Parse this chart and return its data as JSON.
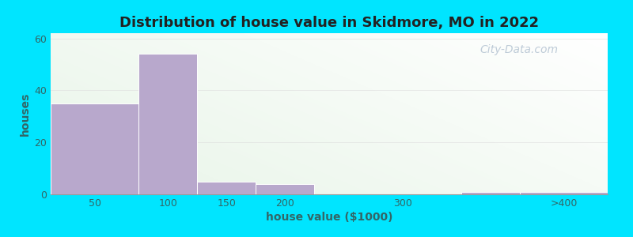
{
  "title": "Distribution of house value in Skidmore, MO in 2022",
  "xlabel": "house value ($1000)",
  "ylabel": "houses",
  "bar_color": "#b8a8cc",
  "bar_edgecolor": "#ffffff",
  "background_outer": "#00e5ff",
  "yticks": [
    0,
    20,
    40,
    60
  ],
  "ylim": [
    0,
    62
  ],
  "xlim": [
    0,
    475
  ],
  "xtick_labels": [
    "50",
    "100",
    "150",
    "200",
    "300",
    ">400"
  ],
  "xtick_positions": [
    37.5,
    100,
    150,
    200,
    300,
    437.5
  ],
  "bar_lefts": [
    0,
    75,
    125,
    175,
    350,
    400
  ],
  "bar_widths": [
    75,
    50,
    50,
    50,
    50,
    75
  ],
  "bar_heights": [
    35,
    54,
    5,
    4,
    1,
    1
  ],
  "watermark": "City-Data.com",
  "title_fontsize": 13,
  "axis_label_fontsize": 10,
  "tick_fontsize": 9,
  "grid_color": "#dddddd",
  "grid_alpha": 0.8,
  "grid_linewidth": 0.5
}
